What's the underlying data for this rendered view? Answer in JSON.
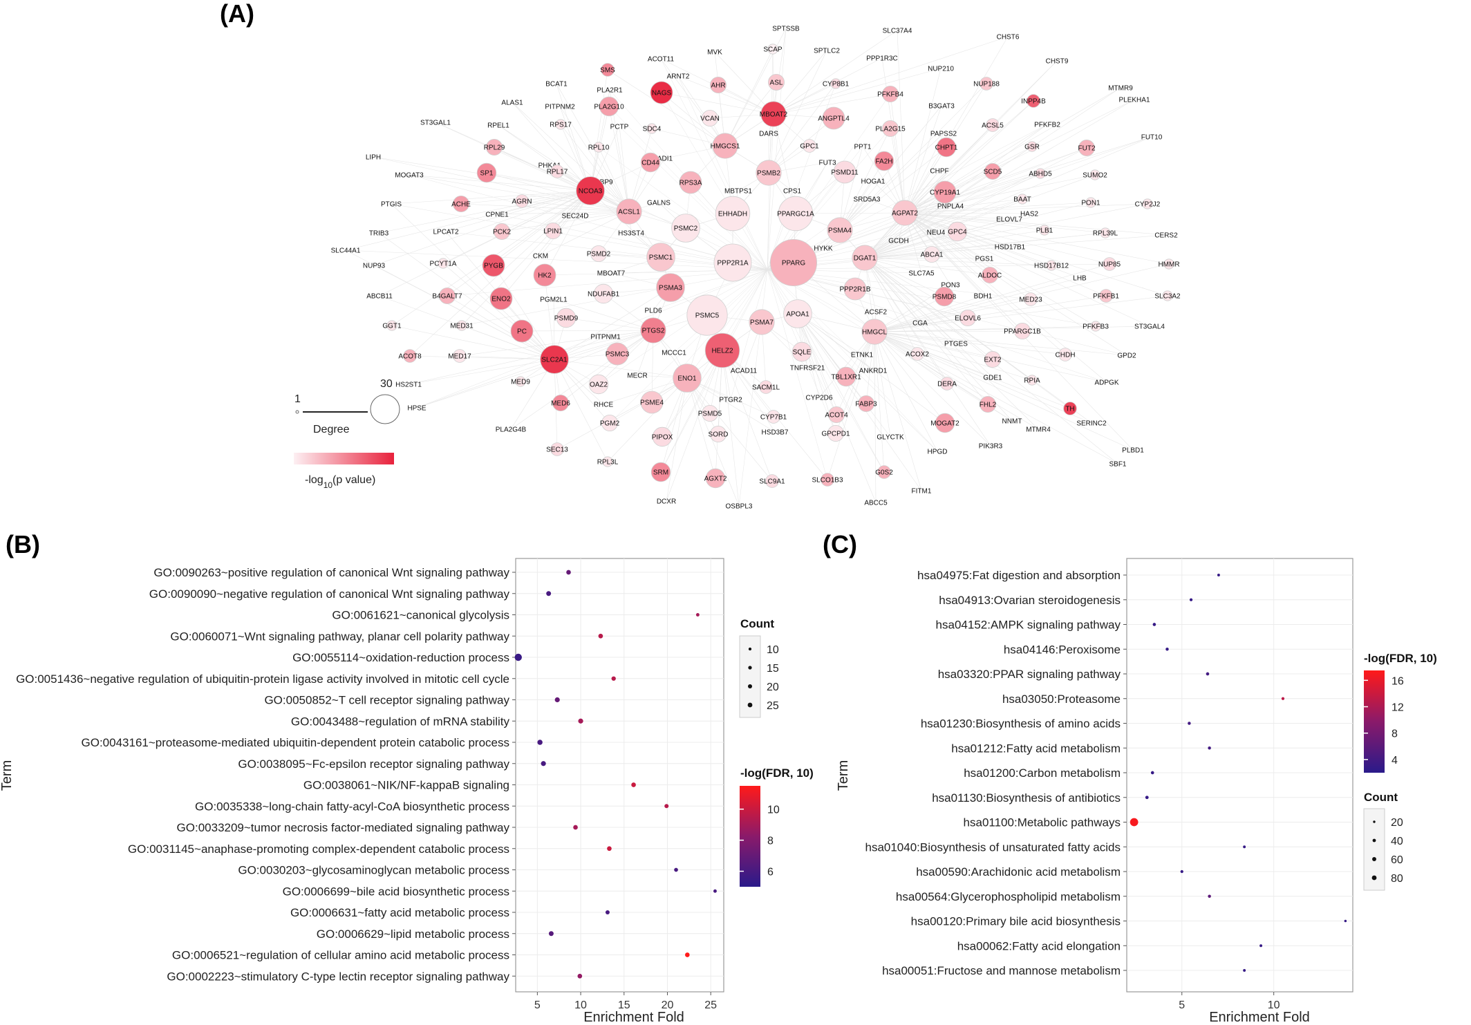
{
  "panels": {
    "A": "(A)",
    "B": "(B)",
    "C": "(C)"
  },
  "network": {
    "degree_legend": {
      "min": "1",
      "max": "30",
      "title": "Degree"
    },
    "color_legend": {
      "title_prefix": "-log",
      "title_sub": "10",
      "title_suffix": "(p value)",
      "low_color": "#fdf0f3",
      "high_color": "#e8223c"
    },
    "edge_color": "#e6e6e6"
  },
  "chart_data": [
    {
      "panel": "B",
      "type": "scatter",
      "xlabel": "Enrichment Fold",
      "ylabel": "Term",
      "xlim": [
        2.5,
        26.5
      ],
      "xticks": [
        5,
        10,
        15,
        20,
        25
      ],
      "grid": true,
      "size_legend": {
        "title": "Count",
        "values": [
          10,
          15,
          20,
          25
        ]
      },
      "color_legend": {
        "title": "-log(FDR, 10)",
        "ticks": [
          6,
          8,
          10
        ],
        "range": [
          5,
          11.5
        ],
        "low": "#2a1a8a",
        "high": "#ff1a1a"
      },
      "legend_position": "right",
      "points": [
        {
          "term": "GO:0090263~positive regulation of canonical Wnt signaling pathway",
          "x": 8.6,
          "count": 11,
          "fdr": 7
        },
        {
          "term": "GO:0090090~negative regulation of canonical Wnt signaling pathway",
          "x": 6.3,
          "count": 12,
          "fdr": 6
        },
        {
          "term": "GO:0061621~canonical glycolysis",
          "x": 23.5,
          "count": 6,
          "fdr": 9
        },
        {
          "term": "GO:0060071~Wnt signaling pathway, planar cell polarity pathway",
          "x": 12.3,
          "count": 11,
          "fdr": 9.5
        },
        {
          "term": "GO:0055114~oxidation-reduction process",
          "x": 2.8,
          "count": 27,
          "fdr": 5.5
        },
        {
          "term": "GO:0051436~negative regulation of ubiquitin-protein ligase activity involved in mitotic cell cycle",
          "x": 13.8,
          "count": 10,
          "fdr": 9.5
        },
        {
          "term": "GO:0050852~T cell receptor signaling pathway",
          "x": 7.3,
          "count": 13,
          "fdr": 7
        },
        {
          "term": "GO:0043488~regulation of mRNA stability",
          "x": 10,
          "count": 13,
          "fdr": 9
        },
        {
          "term": "GO:0043161~proteasome-mediated ubiquitin-dependent protein catabolic process",
          "x": 5.3,
          "count": 14,
          "fdr": 6
        },
        {
          "term": "GO:0038095~Fc-epsilon receptor signaling pathway",
          "x": 5.7,
          "count": 13,
          "fdr": 6
        },
        {
          "term": "GO:0038061~NIK/NF-kappaB signaling",
          "x": 16.1,
          "count": 11,
          "fdr": 10
        },
        {
          "term": "GO:0035338~long-chain fatty-acyl-CoA biosynthetic process",
          "x": 19.9,
          "count": 9,
          "fdr": 9.5
        },
        {
          "term": "GO:0033209~tumor necrosis factor-mediated signaling pathway",
          "x": 9.4,
          "count": 11,
          "fdr": 9
        },
        {
          "term": "GO:0031145~anaphase-promoting complex-dependent catabolic process",
          "x": 13.3,
          "count": 11,
          "fdr": 10
        },
        {
          "term": "GO:0030203~glycosaminoglycan metabolic process",
          "x": 21,
          "count": 8,
          "fdr": 6
        },
        {
          "term": "GO:0006699~bile acid biosynthetic process",
          "x": 25.5,
          "count": 6,
          "fdr": 6
        },
        {
          "term": "GO:0006631~fatty acid metabolic process",
          "x": 13.1,
          "count": 9,
          "fdr": 6
        },
        {
          "term": "GO:0006629~lipid metabolic process",
          "x": 6.6,
          "count": 12,
          "fdr": 6.5
        },
        {
          "term": "GO:0006521~regulation of cellular amino acid metabolic process",
          "x": 22.3,
          "count": 11,
          "fdr": 11.5
        },
        {
          "term": "GO:0002223~stimulatory C-type lectin receptor signaling pathway",
          "x": 9.9,
          "count": 11,
          "fdr": 8.5
        }
      ]
    },
    {
      "panel": "C",
      "type": "scatter",
      "xlabel": "Enrichment Fold",
      "ylabel": "Term",
      "xlim": [
        2,
        14.3
      ],
      "xticks": [
        5,
        10
      ],
      "grid": true,
      "size_legend": {
        "title": "Count",
        "values": [
          20,
          40,
          60,
          80
        ]
      },
      "color_legend": {
        "title": "-log(FDR, 10)",
        "ticks": [
          4,
          8,
          12,
          16
        ],
        "range": [
          2,
          17.5
        ],
        "low": "#2a1a8a",
        "high": "#ff1a1a"
      },
      "legend_position": "right",
      "points": [
        {
          "term": "hsa04975:Fat digestion and absorption",
          "x": 7,
          "count": 10,
          "fdr": 3
        },
        {
          "term": "hsa04913:Ovarian steroidogenesis",
          "x": 5.5,
          "count": 12,
          "fdr": 3
        },
        {
          "term": "hsa04152:AMPK signaling pathway",
          "x": 3.5,
          "count": 14,
          "fdr": 3
        },
        {
          "term": "hsa04146:Peroxisome",
          "x": 4.2,
          "count": 13,
          "fdr": 3
        },
        {
          "term": "hsa03320:PPAR signaling pathway",
          "x": 6.4,
          "count": 14,
          "fdr": 4
        },
        {
          "term": "hsa03050:Proteasome",
          "x": 10.5,
          "count": 12,
          "fdr": 13
        },
        {
          "term": "hsa01230:Biosynthesis of amino acids",
          "x": 5.4,
          "count": 13,
          "fdr": 4
        },
        {
          "term": "hsa01212:Fatty acid metabolism",
          "x": 6.5,
          "count": 13,
          "fdr": 4
        },
        {
          "term": "hsa01200:Carbon metabolism",
          "x": 3.4,
          "count": 14,
          "fdr": 3
        },
        {
          "term": "hsa01130:Biosynthesis of antibiotics",
          "x": 3.1,
          "count": 15,
          "fdr": 3
        },
        {
          "term": "hsa01100:Metabolic pathways",
          "x": 2.4,
          "count": 90,
          "fdr": 17
        },
        {
          "term": "hsa01040:Biosynthesis of unsaturated fatty acids",
          "x": 8.4,
          "count": 10,
          "fdr": 3
        },
        {
          "term": "hsa00590:Arachidonic acid metabolism",
          "x": 5,
          "count": 12,
          "fdr": 3
        },
        {
          "term": "hsa00564:Glycerophospholipid metabolism",
          "x": 6.5,
          "count": 13,
          "fdr": 6
        },
        {
          "term": "hsa00120:Primary bile acid biosynthesis",
          "x": 13.9,
          "count": 8,
          "fdr": 3
        },
        {
          "term": "hsa00062:Fatty acid elongation",
          "x": 9.3,
          "count": 10,
          "fdr": 3
        },
        {
          "term": "hsa00051:Fructose and mannose metabolism",
          "x": 8.4,
          "count": 10,
          "fdr": 3
        }
      ]
    }
  ]
}
